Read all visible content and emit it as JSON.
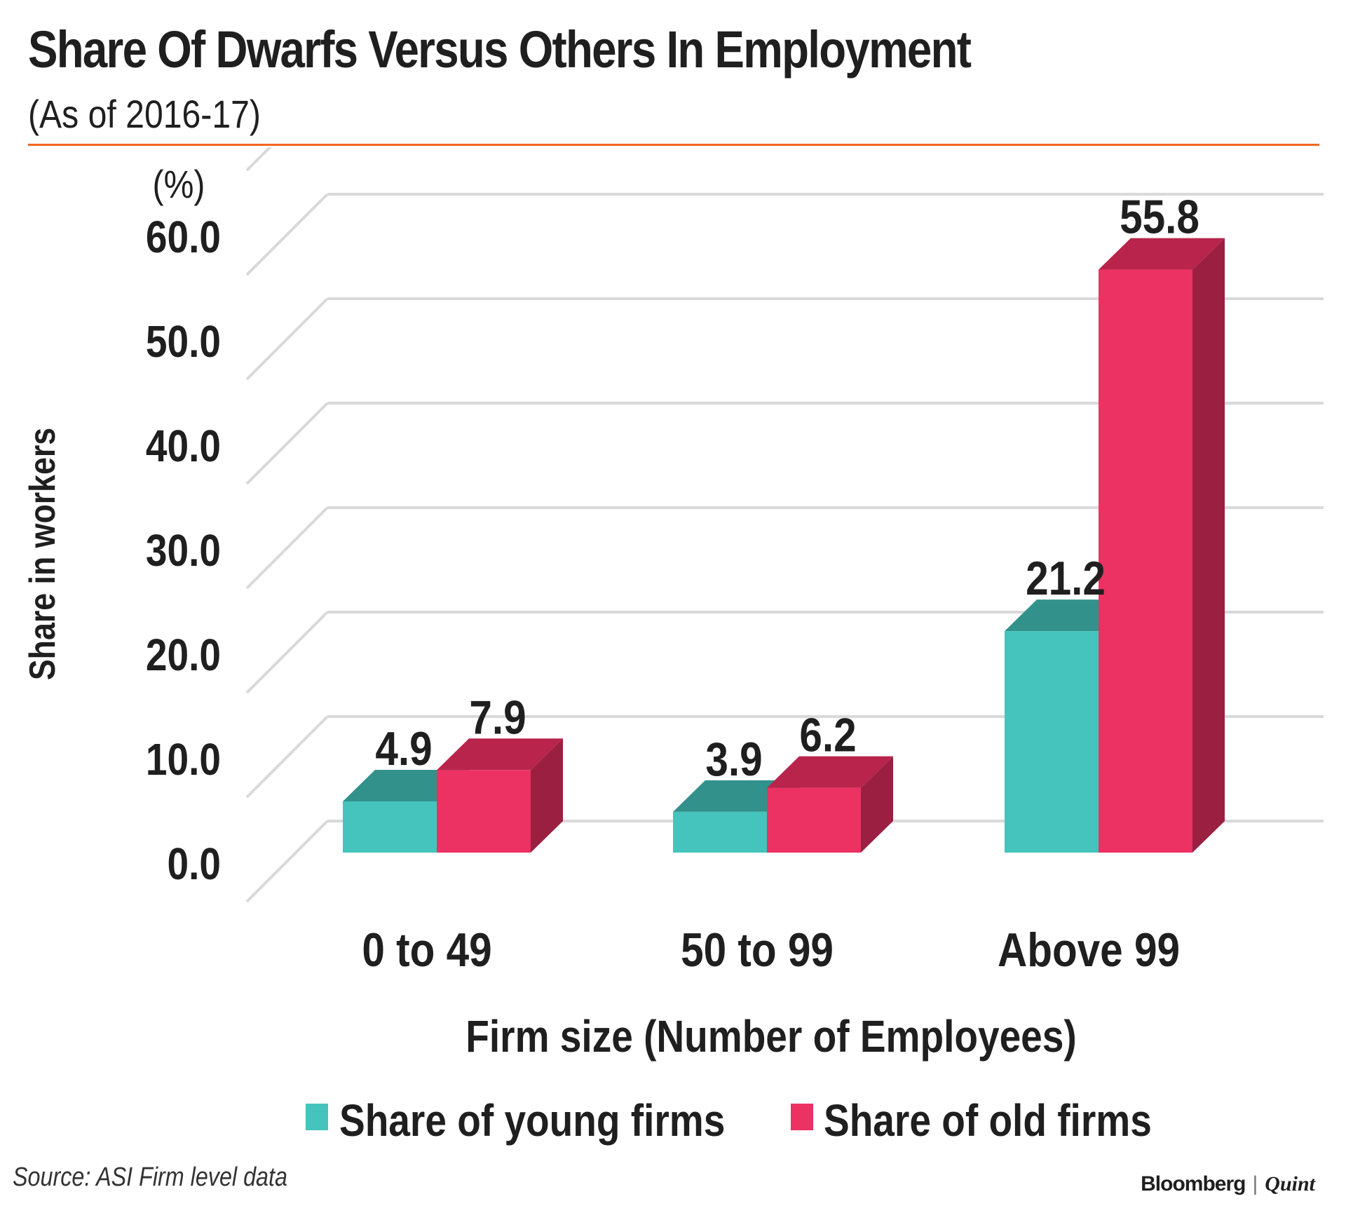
{
  "header": {
    "title": "Share Of Dwarfs Versus Others In Employment",
    "subtitle": "(As of 2016-17)"
  },
  "footer": {
    "source": "Source: ASI Firm level data",
    "brand_primary": "Bloomberg",
    "brand_separator": "|",
    "brand_secondary": "Quint"
  },
  "colors": {
    "young_front": "#45c4bd",
    "young_top": "#33918c",
    "young_side": "#2f807b",
    "old_front": "#ec3163",
    "old_top": "#b8244c",
    "old_side": "#9b1f41",
    "grid": "#d9d9d9",
    "accent_rule": "#f26522"
  },
  "chart_data": {
    "type": "bar",
    "title": "Share Of Dwarfs Versus Others In Employment",
    "subtitle": "(As of 2016-17)",
    "categories": [
      "0 to 49",
      "50 to 99",
      "Above 99"
    ],
    "series": [
      {
        "name": "Share of young firms",
        "values": [
          4.9,
          3.9,
          21.2
        ],
        "labels": [
          "4.9",
          "3.9",
          "21.2"
        ]
      },
      {
        "name": "Share of old firms",
        "values": [
          7.9,
          6.2,
          55.8
        ],
        "labels": [
          "7.9",
          "6.2",
          "55.8"
        ]
      }
    ],
    "yticks": [
      "0.0",
      "10.0",
      "20.0",
      "30.0",
      "40.0",
      "50.0",
      "60.0"
    ],
    "ylim": [
      0,
      65
    ],
    "unit_label": "(%)",
    "xlabel": "Firm size (Number of Employees)",
    "ylabel": "Share in workers",
    "legend_position": "bottom",
    "grid": true,
    "style": "3d-bar"
  }
}
